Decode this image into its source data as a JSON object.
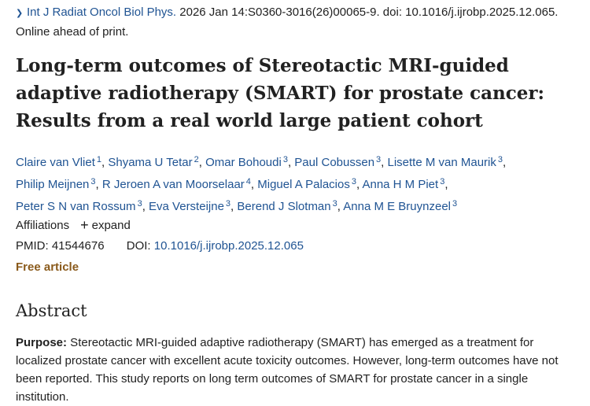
{
  "citation": {
    "journal": "Int J Radiat Oncol Biol Phys.",
    "details": " 2026 Jan 14:S0360-3016(26)00065-9. doi: 10.1016/j.ijrobp.2025.12.065.",
    "status": "Online ahead of print."
  },
  "title": "Long-term outcomes of Stereotactic MRI-guided adaptive radiotherapy (SMART) for prostate cancer: Results from a real world large patient cohort",
  "authors": [
    {
      "name": "Claire van Vliet",
      "aff": "1"
    },
    {
      "name": "Shyama U Tetar",
      "aff": "2"
    },
    {
      "name": "Omar Bohoudi",
      "aff": "3"
    },
    {
      "name": "Paul Cobussen",
      "aff": "3"
    },
    {
      "name": "Lisette M van Maurik",
      "aff": "3"
    },
    {
      "name": "Philip Meijnen",
      "aff": "3"
    },
    {
      "name": "R Jeroen A van Moorselaar",
      "aff": "4"
    },
    {
      "name": "Miguel A Palacios",
      "aff": "3"
    },
    {
      "name": "Anna H M Piet",
      "aff": "3"
    },
    {
      "name": "Peter S N van Rossum",
      "aff": "3"
    },
    {
      "name": "Eva Versteijne",
      "aff": "3"
    },
    {
      "name": "Berend J Slotman",
      "aff": "3"
    },
    {
      "name": "Anna M E Bruynzeel",
      "aff": "3"
    }
  ],
  "affiliations": {
    "label": "Affiliations",
    "toggle": "expand"
  },
  "ids": {
    "pmid_label": "PMID: ",
    "pmid": "41544676",
    "doi_label": "DOI: ",
    "doi": "10.1016/j.ijrobp.2025.12.065"
  },
  "free_article": "Free article",
  "abstract": {
    "heading": "Abstract",
    "purpose_label": "Purpose:",
    "purpose_text": " Stereotactic MRI-guided adaptive radiotherapy (SMART) has emerged as a treatment for localized prostate cancer with excellent acute toxicity outcomes. However, long-term outcomes have not been reported. This study reports on long term outcomes of SMART for prostate cancer in a single institution."
  }
}
